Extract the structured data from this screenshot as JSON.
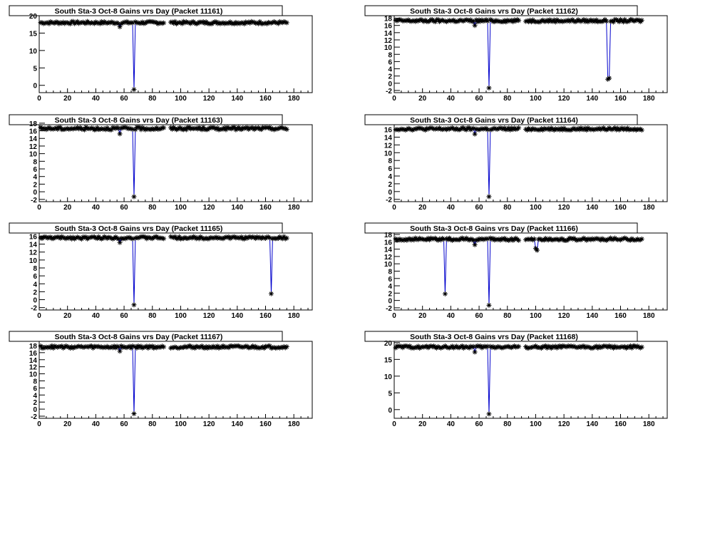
{
  "colors": {
    "marker": "#000000",
    "line": "#0000cc",
    "frame": "#000000",
    "background": "#ffffff"
  },
  "chart_data": [
    {
      "type": "scatter",
      "title": "South Sta-3 Oct-8 Gains vrs Day (Packet 11161)",
      "xlabel": "",
      "ylabel": "",
      "xlim": [
        0,
        193
      ],
      "ylim": [
        -2.1,
        20
      ],
      "xticks": [
        0,
        20,
        40,
        60,
        80,
        100,
        120,
        140,
        160,
        180
      ],
      "yticks": [
        0,
        5,
        10,
        15,
        20
      ],
      "baseline": 18.0,
      "noise": 0.35,
      "dropouts": [
        [
          57,
          16.8
        ],
        [
          67,
          -1.2
        ]
      ],
      "gaps": [
        [
          89,
          92
        ]
      ],
      "grid": false
    },
    {
      "type": "scatter",
      "title": "South Sta-3 Oct-8 Gains vrs Day (Packet 11162)",
      "xlabel": "",
      "ylabel": "",
      "xlim": [
        0,
        193
      ],
      "ylim": [
        -2.6,
        18.7
      ],
      "xticks": [
        0,
        20,
        40,
        60,
        80,
        100,
        120,
        140,
        160,
        180
      ],
      "yticks": [
        -2,
        0,
        2,
        4,
        6,
        8,
        10,
        12,
        14,
        16,
        18
      ],
      "baseline": 17.3,
      "noise": 0.35,
      "dropouts": [
        [
          57,
          16.0
        ],
        [
          67,
          -1.3
        ],
        [
          151,
          1.1
        ],
        [
          152,
          1.4
        ]
      ],
      "gaps": [
        [
          89,
          92
        ]
      ],
      "grid": false
    },
    {
      "type": "scatter",
      "title": "South Sta-3 Oct-8 Gains vrs Day (Packet 11163)",
      "xlabel": "",
      "ylabel": "",
      "xlim": [
        0,
        193
      ],
      "ylim": [
        -2.6,
        17.6
      ],
      "xticks": [
        0,
        20,
        40,
        60,
        80,
        100,
        120,
        140,
        160,
        180
      ],
      "yticks": [
        -2,
        0,
        2,
        4,
        6,
        8,
        10,
        12,
        14,
        16,
        18
      ],
      "baseline": 16.6,
      "noise": 0.35,
      "dropouts": [
        [
          57,
          15.2
        ],
        [
          67,
          -1.3
        ]
      ],
      "gaps": [
        [
          89,
          92
        ]
      ],
      "grid": false
    },
    {
      "type": "scatter",
      "title": "South Sta-3 Oct-8 Gains vrs Day (Packet 11164)",
      "xlabel": "",
      "ylabel": "",
      "xlim": [
        0,
        193
      ],
      "ylim": [
        -2.6,
        17.2
      ],
      "xticks": [
        0,
        20,
        40,
        60,
        80,
        100,
        120,
        140,
        160,
        180
      ],
      "yticks": [
        -2,
        0,
        2,
        4,
        6,
        8,
        10,
        12,
        14,
        16
      ],
      "baseline": 16.1,
      "noise": 0.3,
      "dropouts": [
        [
          57,
          14.8
        ],
        [
          67,
          -1.3
        ]
      ],
      "gaps": [
        [
          89,
          92
        ]
      ],
      "grid": false
    },
    {
      "type": "scatter",
      "title": "South Sta-3 Oct-8 Gains vrs Day (Packet 11165)",
      "xlabel": "",
      "ylabel": "",
      "xlim": [
        0,
        193
      ],
      "ylim": [
        -2.6,
        16.8
      ],
      "xticks": [
        0,
        20,
        40,
        60,
        80,
        100,
        120,
        140,
        160,
        180
      ],
      "yticks": [
        -2,
        0,
        2,
        4,
        6,
        8,
        10,
        12,
        14,
        16
      ],
      "baseline": 15.6,
      "noise": 0.3,
      "dropouts": [
        [
          57,
          14.4
        ],
        [
          67,
          -1.3
        ],
        [
          164,
          1.5
        ]
      ],
      "gaps": [
        [
          89,
          92
        ]
      ],
      "grid": false
    },
    {
      "type": "scatter",
      "title": "South Sta-3 Oct-8 Gains vrs Day (Packet 11166)",
      "xlabel": "",
      "ylabel": "",
      "xlim": [
        0,
        193
      ],
      "ylim": [
        -2.6,
        18.4
      ],
      "xticks": [
        0,
        20,
        40,
        60,
        80,
        100,
        120,
        140,
        160,
        180
      ],
      "yticks": [
        -2,
        0,
        2,
        4,
        6,
        8,
        10,
        12,
        14,
        16,
        18
      ],
      "baseline": 16.7,
      "noise": 0.35,
      "dropouts": [
        [
          36,
          1.8
        ],
        [
          57,
          15.2
        ],
        [
          67,
          -1.3
        ],
        [
          100,
          14.2
        ],
        [
          101,
          13.7
        ]
      ],
      "gaps": [
        [
          89,
          92
        ]
      ],
      "grid": false
    },
    {
      "type": "scatter",
      "title": "South Sta-3 Oct-8 Gains vrs Day (Packet 11167)",
      "xlabel": "",
      "ylabel": "",
      "xlim": [
        0,
        193
      ],
      "ylim": [
        -2.6,
        19.2
      ],
      "xticks": [
        0,
        20,
        40,
        60,
        80,
        100,
        120,
        140,
        160,
        180
      ],
      "yticks": [
        -2,
        0,
        2,
        4,
        6,
        8,
        10,
        12,
        14,
        16,
        18
      ],
      "baseline": 17.6,
      "noise": 0.35,
      "dropouts": [
        [
          57,
          16.4
        ],
        [
          67,
          -1.3
        ]
      ],
      "gaps": [
        [
          89,
          92
        ]
      ],
      "grid": false
    },
    {
      "type": "scatter",
      "title": "South Sta-3 Oct-8 Gains vrs Day (Packet 11168)",
      "xlabel": "",
      "ylabel": "",
      "xlim": [
        0,
        193
      ],
      "ylim": [
        -2.6,
        20.4
      ],
      "xticks": [
        0,
        20,
        40,
        60,
        80,
        100,
        120,
        140,
        160,
        180
      ],
      "yticks": [
        0,
        5,
        10,
        15,
        20
      ],
      "baseline": 18.7,
      "noise": 0.35,
      "dropouts": [
        [
          57,
          17.2
        ],
        [
          67,
          -1.3
        ]
      ],
      "gaps": [
        [
          89,
          92
        ]
      ],
      "grid": false
    }
  ]
}
